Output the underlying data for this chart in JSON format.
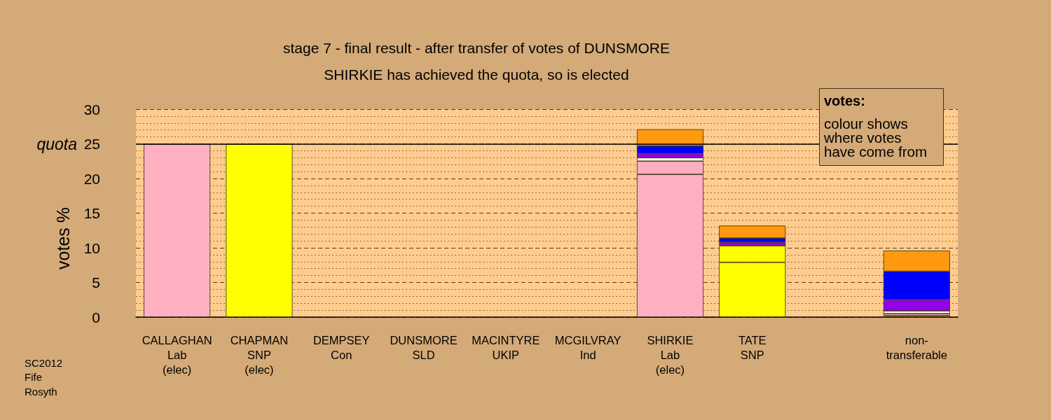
{
  "chart_data": {
    "type": "bar",
    "stacked": true,
    "title": "stage 7 - final result - after transfer of votes of DUNSMORE",
    "subtitle": "SHIRKIE has achieved the quota, so is elected",
    "ylabel": "votes %",
    "categories": [
      "CALLAGHAN\nLab\n(elec)",
      "CHAPMAN\nSNP\n(elec)",
      "DEMPSEY\nCon",
      "DUNSMORE\nSLD",
      "MACINTYRE\nUKIP",
      "MCGILVRAY\nInd",
      "SHIRKIE\nLab\n(elec)",
      "TATE\nSNP",
      null,
      "non-\ntransferable"
    ],
    "series": [
      {
        "color": "#ffb0c0",
        "values": [
          25,
          null,
          null,
          null,
          null,
          null,
          20.6,
          null,
          null,
          null
        ]
      },
      {
        "color": "#ffff00",
        "values": [
          null,
          25,
          null,
          null,
          null,
          null,
          null,
          7.9,
          null,
          null
        ]
      },
      {
        "color": "#ffff00",
        "values": [
          null,
          null,
          null,
          null,
          null,
          null,
          null,
          2.4,
          null,
          0.2
        ]
      },
      {
        "color": "#ffb0c0",
        "values": [
          null,
          null,
          null,
          null,
          null,
          null,
          1.9,
          null,
          null,
          0.3
        ]
      },
      {
        "color": "#ffffff",
        "values": [
          null,
          null,
          null,
          null,
          null,
          null,
          0.5,
          null,
          null,
          0.4
        ]
      },
      {
        "color": "#9400e8",
        "values": [
          null,
          null,
          null,
          null,
          null,
          null,
          0.6,
          0.5,
          null,
          1.6
        ]
      },
      {
        "color": "#0000ff",
        "values": [
          null,
          null,
          null,
          null,
          null,
          null,
          1.1,
          0.6,
          null,
          4.1
        ]
      },
      {
        "color": "#ff9910",
        "values": [
          null,
          null,
          null,
          null,
          null,
          null,
          2.4,
          1.8,
          null,
          3.0
        ]
      }
    ],
    "ylim": [
      0,
      30
    ],
    "yticks": [
      0,
      {
        "value": 1,
        "label": null
      },
      {
        "value": 2,
        "label": null
      },
      {
        "value": 3,
        "label": null
      },
      {
        "value": 4,
        "label": null
      },
      5,
      {
        "value": 6,
        "label": null
      },
      {
        "value": 7,
        "label": null
      },
      {
        "value": 8,
        "label": null
      },
      {
        "value": 9,
        "label": null
      },
      10,
      {
        "value": 11,
        "label": null
      },
      {
        "value": 12,
        "label": null
      },
      {
        "value": 13,
        "label": null
      },
      {
        "value": 14,
        "label": null
      },
      15,
      {
        "value": 16,
        "label": null
      },
      {
        "value": 17,
        "label": null
      },
      {
        "value": 18,
        "label": null
      },
      {
        "value": 19,
        "label": null
      },
      20,
      {
        "value": 21,
        "label": null
      },
      {
        "value": 22,
        "label": null
      },
      {
        "value": 23,
        "label": null
      },
      {
        "value": 24,
        "label": null
      },
      25,
      {
        "value": 26,
        "label": null
      },
      {
        "value": 27,
        "label": null
      },
      {
        "value": 28,
        "label": null
      },
      {
        "value": 29,
        "label": null
      },
      30
    ],
    "grid": "y",
    "ref_lines": [
      {
        "axis": "y",
        "value": 25,
        "label": "quota",
        "color": "#000000"
      }
    ],
    "annotations": [
      "votes:",
      "colour shows\nwhere votes\nhave come from",
      "SC2012\nFife\nRosyth"
    ]
  }
}
